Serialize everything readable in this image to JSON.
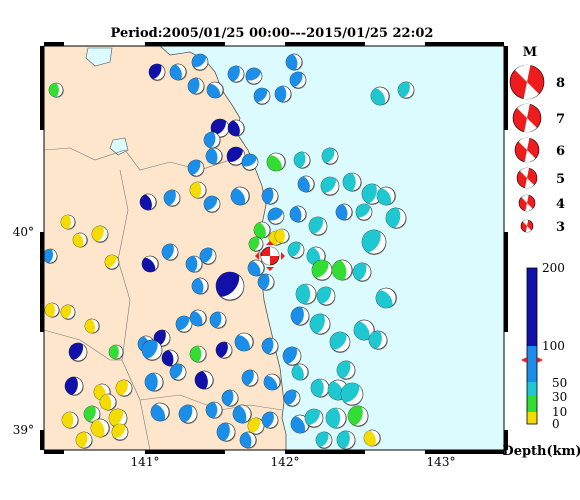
{
  "title": "Period:2005/01/25 00:00---2015/01/25 22:02",
  "map": {
    "lat_labels": [
      "40°",
      "39°"
    ],
    "lon_labels": [
      "141°",
      "142°",
      "143°"
    ],
    "colors": {
      "sea": "#dcfbff",
      "land": "#fde6cc",
      "coast": "#555555",
      "frame": "#000000"
    }
  },
  "magnitude_legend": {
    "title": "M",
    "items": [
      "8",
      "7",
      "6",
      "5",
      "4",
      "3"
    ],
    "color": "#ee1c1c"
  },
  "depth_scale": {
    "label": "Depth(km)",
    "ticks": [
      "200",
      "100",
      "50",
      "30",
      "10",
      "0"
    ],
    "colors": {
      "0-10": "#f4dc00",
      "10-30": "#33dd33",
      "30-60": "#1fc7d0",
      "60-100": "#1a8ee8",
      "100-200": "#1111aa"
    }
  },
  "highlight_event": {
    "color": "#ee1c1c"
  }
}
